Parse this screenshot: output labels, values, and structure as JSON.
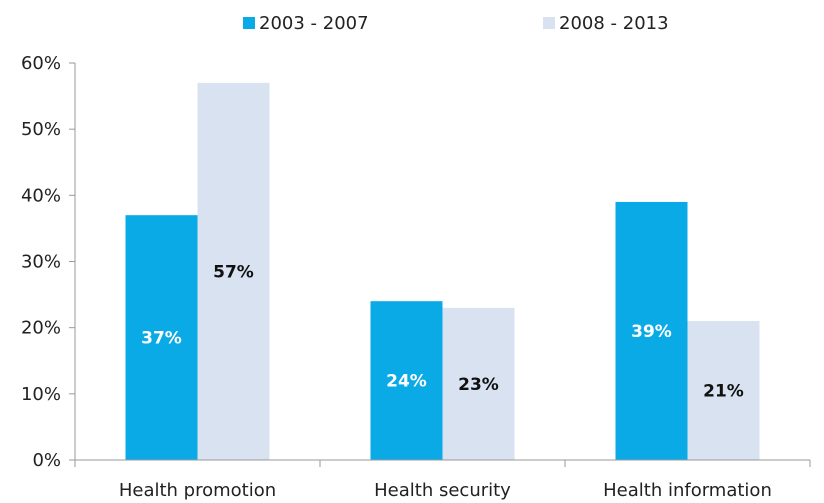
{
  "chart_data": {
    "type": "bar",
    "title": "",
    "xlabel": "",
    "ylabel": "",
    "categories": [
      "Health promotion",
      "Health security",
      "Health information"
    ],
    "series": [
      {
        "name": "2003 - 2007",
        "color": "#0aaae6",
        "label_color": "#ffffff",
        "values": [
          37,
          24,
          39
        ],
        "labels": [
          "37%",
          "24%",
          "39%"
        ]
      },
      {
        "name": "2008 - 2013",
        "color": "#d8e2f1",
        "label_color": "#111111",
        "values": [
          57,
          23,
          21
        ],
        "labels": [
          "57%",
          "23%",
          "21%"
        ]
      }
    ],
    "ylim": [
      0,
      60
    ],
    "yticks": [
      0,
      10,
      20,
      30,
      40,
      50,
      60
    ],
    "ytick_labels": [
      "0%",
      "10%",
      "20%",
      "30%",
      "40%",
      "50%",
      "60%"
    ],
    "grid": false,
    "legend_position": "top-center"
  }
}
